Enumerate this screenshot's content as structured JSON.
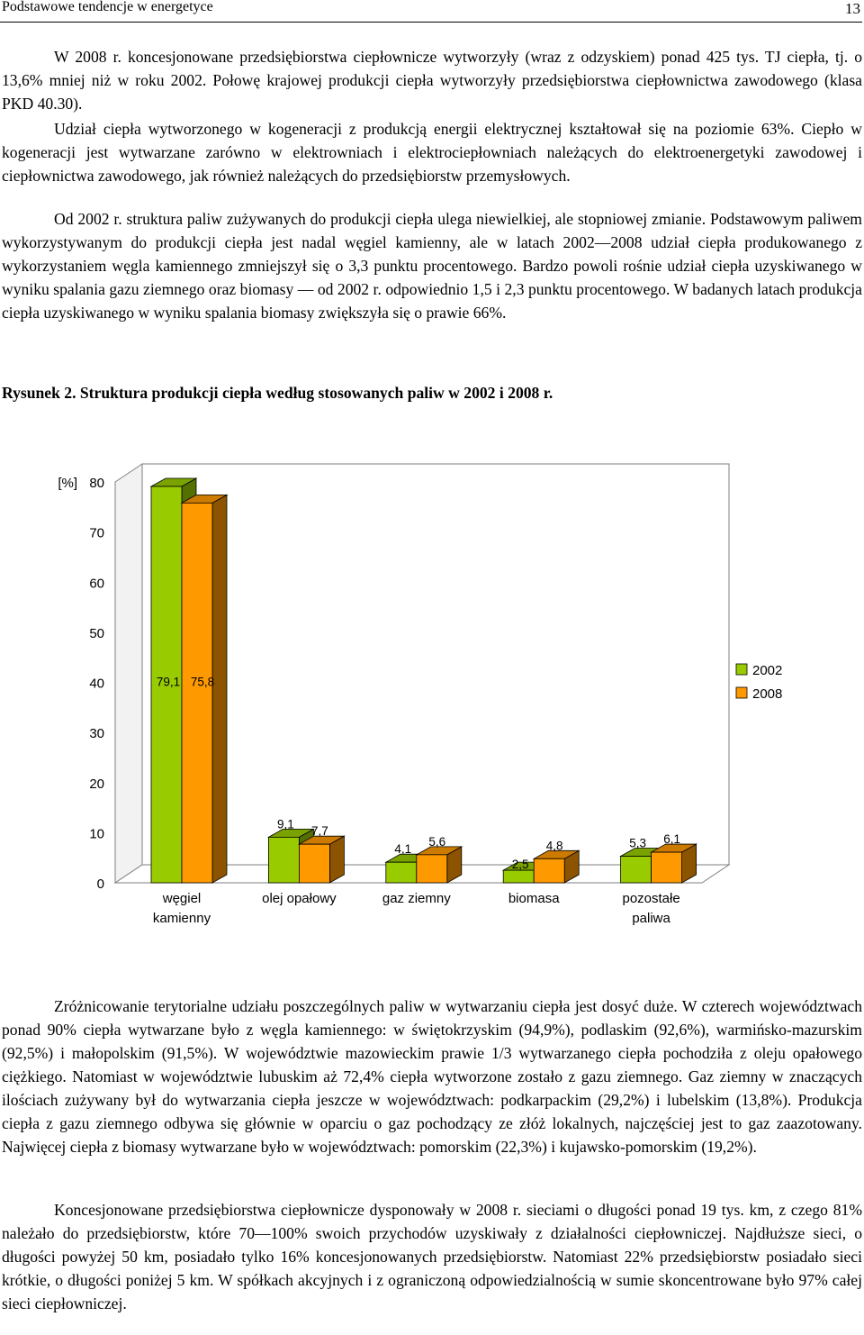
{
  "header": {
    "title": "Podstawowe tendencje w energetyce",
    "page_number": "13"
  },
  "paragraphs": {
    "p1": "W 2008 r. koncesjonowane przedsiębiorstwa ciepłownicze wytworzyły (wraz z odzyskiem) ponad 425 tys. TJ ciepła, tj. o 13,6% mniej niż w roku 2002. Połowę krajowej produkcji ciepła wytworzyły przedsiębiorstwa ciepłownictwa zawodowego (klasa PKD 40.30).",
    "p2": "Udział ciepła wytworzonego w kogeneracji z produkcją energii elektrycznej kształtował się na poziomie 63%. Ciepło w kogeneracji jest wytwarzane zarówno w elektrowniach i elektrociepłowniach należących do elektroenergetyki zawodowej i ciepłownictwa zawodowego, jak również należących do przedsiębiorstw przemysłowych.",
    "p3": "Od 2002 r. struktura paliw zużywanych do produkcji ciepła ulega niewielkiej, ale stopniowej zmianie. Podstawowym paliwem wykorzystywanym do produkcji ciepła jest nadal węgiel kamienny, ale w latach 2002—2008 udział ciepła produkowanego z wykorzystaniem węgla kamiennego zmniejszył się o 3,3 punktu procentowego. Bardzo powoli rośnie udział ciepła uzyskiwanego w wyniku spalania gazu ziemnego oraz biomasy — od 2002 r. odpowiednio 1,5 i 2,3 punktu procentowego. W badanych latach produkcja ciepła uzyskiwanego w wyniku spalania biomasy zwiększyła się o prawie 66%.",
    "p4": "Zróżnicowanie terytorialne udziału poszczególnych paliw w wytwarzaniu ciepła jest dosyć duże. W czterech województwach ponad 90% ciepła wytwarzane było z węgla kamiennego: w świętokrzyskim (94,9%), podlaskim (92,6%), warmińsko-mazurskim (92,5%) i małopolskim (91,5%). W województwie mazowieckim prawie 1/3 wytwarzanego ciepła pochodziła z oleju opałowego ciężkiego. Natomiast w województwie lubuskim aż 72,4% ciepła wytworzone zostało z gazu ziemnego. Gaz ziemny w znaczących ilościach zużywany był do wytwarzania ciepła jeszcze w województwach: podkarpackim (29,2%) i lubelskim (13,8%). Produkcja ciepła z gazu ziemnego odbywa się głównie w oparciu o gaz pochodzący ze złóż lokalnych, najczęściej jest to gaz zaazotowany. Najwięcej ciepła z biomasy wytwarzane było w województwach: pomorskim (22,3%) i kujawsko-pomorskim (19,2%).",
    "p5": "Koncesjonowane przedsiębiorstwa ciepłownicze dysponowały w 2008 r. sieciami o długości ponad 19 tys. km, z czego 81% należało do przedsiębiorstw, które 70—100% swoich przychodów uzyskiwały z działalności ciepłowniczej. Najdłuższe sieci, o długości powyżej 50 km, posiadało tylko 16% koncesjonowanych przedsiębiorstw. Natomiast 22% przedsiębiorstw posiadało sieci krótkie, o długości poniżej 5 km. W spółkach akcyjnych i z ograniczoną odpowiedzialnością w sumie skoncentrowane było 97% całej sieci ciepłowniczej."
  },
  "figure": {
    "caption": "Rysunek 2. Struktura produkcji ciepła według stosowanych paliw w 2002 i 2008 r."
  },
  "chart_data": {
    "type": "bar",
    "title": "",
    "ylabel": "[%]",
    "ylim": [
      0,
      80
    ],
    "yticks": [
      "0",
      "10",
      "20",
      "30",
      "40",
      "50",
      "60",
      "70",
      "80"
    ],
    "categories": [
      [
        "węgiel",
        "kamienny"
      ],
      [
        "olej opałowy"
      ],
      [
        "gaz ziemny"
      ],
      [
        "biomasa"
      ],
      [
        "pozostałe",
        "paliwa"
      ]
    ],
    "series": [
      {
        "name": "2002",
        "color": "#99cc00",
        "values": [
          79.1,
          9.1,
          4.1,
          2.5,
          5.3
        ],
        "labels": [
          "79,1",
          "9,1",
          "4,1",
          "2,5",
          "5,3"
        ]
      },
      {
        "name": "2008",
        "color": "#ff9900",
        "values": [
          75.8,
          7.7,
          5.6,
          4.8,
          6.1
        ],
        "labels": [
          "75,8",
          "7,7",
          "5,6",
          "4,8",
          "6,1"
        ]
      }
    ],
    "legend_position": "right",
    "grid": false,
    "style": "3d-clustered"
  }
}
